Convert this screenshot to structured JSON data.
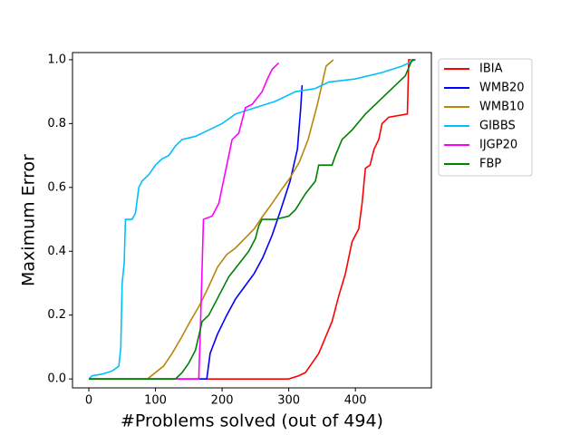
{
  "chart_data": {
    "type": "line",
    "xlabel": "#Problems solved (out of 494)",
    "ylabel": "Maximum Error",
    "xlim": [
      -24.5,
      514
    ],
    "ylim": [
      -0.028,
      1.0225
    ],
    "xticks": [
      0,
      100,
      200,
      300,
      400
    ],
    "yticks": [
      {
        "value": 0,
        "label": "0.0"
      },
      0.2,
      0.4,
      0.6,
      0.8,
      {
        "value": 1,
        "label": "1.0"
      }
    ],
    "legend": "outside-upper-right",
    "series": [
      {
        "name": "IBIA",
        "color": "#ff0000",
        "x": [
          0,
          300,
          315,
          325,
          335,
          345,
          355,
          365,
          375,
          385,
          395,
          405,
          410,
          415,
          422,
          428,
          435,
          440,
          450,
          478,
          480,
          483
        ],
        "values": [
          0,
          0,
          0.01,
          0.02,
          0.05,
          0.08,
          0.13,
          0.18,
          0.26,
          0.33,
          0.43,
          0.47,
          0.55,
          0.66,
          0.67,
          0.72,
          0.75,
          0.8,
          0.82,
          0.83,
          1.0,
          1.0
        ]
      },
      {
        "name": "WMB20",
        "color": "#0000ff",
        "x": [
          0,
          177,
          182,
          193,
          207,
          220,
          234,
          248,
          261,
          275,
          288,
          302,
          313,
          318,
          320
        ],
        "values": [
          0,
          0,
          0.08,
          0.14,
          0.2,
          0.25,
          0.29,
          0.33,
          0.38,
          0.45,
          0.53,
          0.62,
          0.72,
          0.85,
          0.92
        ]
      },
      {
        "name": "WMB10",
        "color": "#b8860b",
        "x": [
          88,
          112,
          125,
          139,
          152,
          166,
          180,
          193,
          207,
          220,
          234,
          248,
          261,
          275,
          288,
          302,
          316,
          329,
          343,
          356,
          367
        ],
        "values": [
          0,
          0.04,
          0.08,
          0.13,
          0.18,
          0.23,
          0.29,
          0.35,
          0.39,
          0.41,
          0.44,
          0.47,
          0.51,
          0.55,
          0.59,
          0.63,
          0.68,
          0.75,
          0.86,
          0.98,
          1.0
        ]
      },
      {
        "name": "GIBBS",
        "color": "#00bfff",
        "x": [
          0,
          5,
          20,
          35,
          45,
          48,
          50,
          53,
          55,
          65,
          70,
          75,
          80,
          90,
          100,
          110,
          120,
          130,
          140,
          160,
          180,
          200,
          220,
          250,
          280,
          310,
          340,
          360,
          400,
          440,
          470,
          490
        ],
        "values": [
          0,
          0.01,
          0.015,
          0.025,
          0.04,
          0.1,
          0.3,
          0.36,
          0.5,
          0.5,
          0.52,
          0.6,
          0.62,
          0.64,
          0.67,
          0.69,
          0.7,
          0.73,
          0.75,
          0.76,
          0.78,
          0.8,
          0.83,
          0.85,
          0.87,
          0.9,
          0.91,
          0.93,
          0.94,
          0.96,
          0.98,
          1.0
        ]
      },
      {
        "name": "IJGP20",
        "color": "#ff00ff",
        "x": [
          0,
          165,
          168,
          172,
          185,
          195,
          205,
          210,
          215,
          225,
          235,
          245,
          260,
          268,
          275,
          285
        ],
        "values": [
          0,
          0,
          0.2,
          0.5,
          0.51,
          0.55,
          0.65,
          0.7,
          0.75,
          0.77,
          0.85,
          0.86,
          0.9,
          0.94,
          0.97,
          0.99
        ]
      },
      {
        "name": "FBP",
        "color": "#008000",
        "x": [
          0,
          130,
          140,
          150,
          160,
          170,
          180,
          195,
          210,
          225,
          240,
          250,
          255,
          260,
          280,
          300,
          310,
          325,
          340,
          345,
          365,
          370,
          380,
          395,
          415,
          440,
          460,
          475,
          485,
          490
        ],
        "values": [
          0,
          0,
          0.02,
          0.05,
          0.09,
          0.18,
          0.2,
          0.26,
          0.32,
          0.36,
          0.4,
          0.44,
          0.48,
          0.5,
          0.5,
          0.51,
          0.53,
          0.58,
          0.62,
          0.67,
          0.67,
          0.7,
          0.75,
          0.78,
          0.83,
          0.88,
          0.92,
          0.95,
          1.0,
          1.0
        ]
      }
    ]
  }
}
